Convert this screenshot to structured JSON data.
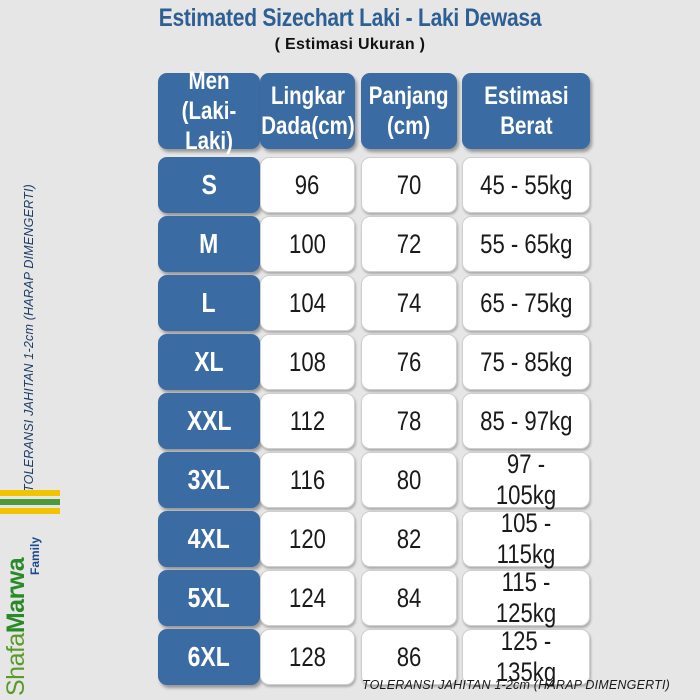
{
  "title": "Estimated Sizechart Laki - Laki Dewasa",
  "subtitle": "( Estimasi Ukuran )",
  "headers": [
    "Men\n(Laki-Laki)",
    "Lingkar\nDada(cm)",
    "Panjang\n(cm)",
    "Estimasi\nBerat"
  ],
  "rows": [
    {
      "size": "S",
      "chest": "96",
      "length": "70",
      "weight": "45 - 55kg"
    },
    {
      "size": "M",
      "chest": "100",
      "length": "72",
      "weight": "55 - 65kg"
    },
    {
      "size": "L",
      "chest": "104",
      "length": "74",
      "weight": "65 - 75kg"
    },
    {
      "size": "XL",
      "chest": "108",
      "length": "76",
      "weight": "75 - 85kg"
    },
    {
      "size": "XXL",
      "chest": "112",
      "length": "78",
      "weight": "85 - 97kg"
    },
    {
      "size": "3XL",
      "chest": "116",
      "length": "80",
      "weight": "97 - 105kg"
    },
    {
      "size": "4XL",
      "chest": "120",
      "length": "82",
      "weight": "105 - 115kg"
    },
    {
      "size": "5XL",
      "chest": "124",
      "length": "84",
      "weight": "115 - 125kg"
    },
    {
      "size": "6XL",
      "chest": "128",
      "length": "86",
      "weight": "125 - 135kg"
    }
  ],
  "tolerance_note": "TOLERANSI JAHITAN 1-2cm (HARAP DIMENGERTI)",
  "brand": {
    "part1": "Shafa",
    "part2": "Marwa",
    "sub": "Family"
  },
  "colors": {
    "header_blue": "#3a6ba3",
    "title_blue": "#2e5f94",
    "background": "#e6e6e6"
  }
}
